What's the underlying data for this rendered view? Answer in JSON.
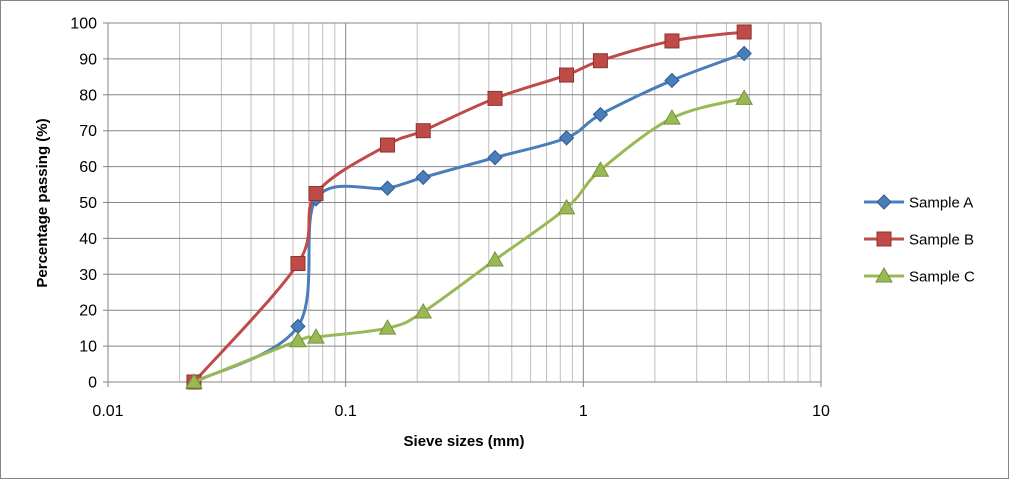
{
  "chart_data": {
    "type": "scatter",
    "x_scale": "log",
    "xlabel": "Sieve sizes (mm)",
    "ylabel": "Percentage passing (%)",
    "xlim": [
      0.01,
      10
    ],
    "ylim": [
      0,
      100
    ],
    "x_ticks": [
      "0.01",
      "0.1",
      "1",
      "10"
    ],
    "y_ticks": [
      "0",
      "10",
      "20",
      "30",
      "40",
      "50",
      "60",
      "70",
      "80",
      "90",
      "100"
    ],
    "grid": true,
    "legend_position": "right",
    "series": [
      {
        "name": "Sample A",
        "color": "#4a7ebb",
        "marker": "diamond",
        "points": [
          {
            "x": 0.023,
            "y": 0
          },
          {
            "x": 0.063,
            "y": 15.5
          },
          {
            "x": 0.075,
            "y": 51
          },
          {
            "x": 0.15,
            "y": 54
          },
          {
            "x": 0.212,
            "y": 57
          },
          {
            "x": 0.425,
            "y": 62.5
          },
          {
            "x": 0.85,
            "y": 68
          },
          {
            "x": 1.18,
            "y": 74.5
          },
          {
            "x": 2.36,
            "y": 84
          },
          {
            "x": 4.75,
            "y": 91.5
          }
        ]
      },
      {
        "name": "Sample B",
        "color": "#be4b48",
        "marker": "square",
        "points": [
          {
            "x": 0.023,
            "y": 0
          },
          {
            "x": 0.063,
            "y": 33
          },
          {
            "x": 0.075,
            "y": 52.5
          },
          {
            "x": 0.15,
            "y": 66
          },
          {
            "x": 0.212,
            "y": 70
          },
          {
            "x": 0.425,
            "y": 79
          },
          {
            "x": 0.85,
            "y": 85.5
          },
          {
            "x": 1.18,
            "y": 89.5
          },
          {
            "x": 2.36,
            "y": 95
          },
          {
            "x": 4.75,
            "y": 97.5
          }
        ]
      },
      {
        "name": "Sample C",
        "color": "#98b954",
        "marker": "triangle",
        "points": [
          {
            "x": 0.023,
            "y": 0
          },
          {
            "x": 0.063,
            "y": 11.5
          },
          {
            "x": 0.075,
            "y": 12.5
          },
          {
            "x": 0.15,
            "y": 15
          },
          {
            "x": 0.212,
            "y": 19.5
          },
          {
            "x": 0.425,
            "y": 34
          },
          {
            "x": 0.85,
            "y": 48.5
          },
          {
            "x": 1.18,
            "y": 59
          },
          {
            "x": 2.36,
            "y": 73.5
          },
          {
            "x": 4.75,
            "y": 79
          }
        ]
      }
    ]
  }
}
